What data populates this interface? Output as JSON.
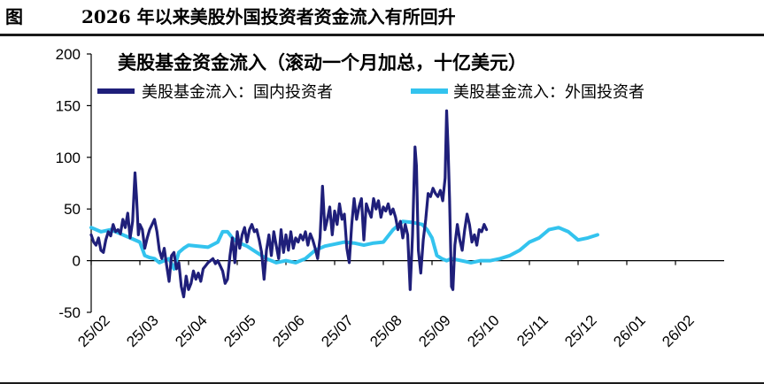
{
  "figure": {
    "label": "图",
    "title": "2026 年以来美股外国投资者资金流入有所回升"
  },
  "chart_data": {
    "type": "line",
    "title": "美股基金资金流入（滚动一个月加总，十亿美元）",
    "ylim": [
      -50,
      200
    ],
    "yticks": [
      "200",
      "150",
      "100",
      "50",
      "0",
      "-50"
    ],
    "xticks": [
      "25/02",
      "25/03",
      "25/04",
      "25/05",
      "25/06",
      "25/07",
      "25/08",
      "25/09",
      "25/10",
      "25/11",
      "25/12",
      "26/01",
      "26/02"
    ],
    "grid": false,
    "legend_position": "top-left",
    "series": [
      {
        "name": "美股基金流入：国内投资者",
        "color": "#1f1f7a",
        "values": [
          [
            0,
            25
          ],
          [
            0.05,
            18
          ],
          [
            0.1,
            15
          ],
          [
            0.15,
            22
          ],
          [
            0.2,
            10
          ],
          [
            0.25,
            8
          ],
          [
            0.3,
            20
          ],
          [
            0.35,
            28
          ],
          [
            0.4,
            24
          ],
          [
            0.45,
            35
          ],
          [
            0.5,
            28
          ],
          [
            0.55,
            30
          ],
          [
            0.6,
            26
          ],
          [
            0.65,
            40
          ],
          [
            0.7,
            32
          ],
          [
            0.75,
            46
          ],
          [
            0.8,
            22
          ],
          [
            0.85,
            38
          ],
          [
            0.9,
            85
          ],
          [
            0.93,
            62
          ],
          [
            0.97,
            25
          ],
          [
            1.0,
            35
          ],
          [
            1.05,
            30
          ],
          [
            1.1,
            12
          ],
          [
            1.15,
            22
          ],
          [
            1.2,
            30
          ],
          [
            1.25,
            35
          ],
          [
            1.3,
            40
          ],
          [
            1.35,
            28
          ],
          [
            1.4,
            10
          ],
          [
            1.45,
            2
          ],
          [
            1.5,
            12
          ],
          [
            1.55,
            -5
          ],
          [
            1.6,
            -20
          ],
          [
            1.65,
            5
          ],
          [
            1.7,
            8
          ],
          [
            1.75,
            -8
          ],
          [
            1.8,
            -2
          ],
          [
            1.85,
            -25
          ],
          [
            1.9,
            -35
          ],
          [
            1.95,
            -15
          ],
          [
            2.0,
            -28
          ],
          [
            2.05,
            -22
          ],
          [
            2.1,
            -10
          ],
          [
            2.15,
            -18
          ],
          [
            2.2,
            -12
          ],
          [
            2.25,
            -20
          ],
          [
            2.3,
            -8
          ],
          [
            2.35,
            -5
          ],
          [
            2.4,
            -2
          ],
          [
            2.45,
            0
          ],
          [
            2.5,
            2
          ],
          [
            2.55,
            -3
          ],
          [
            2.6,
            0
          ],
          [
            2.65,
            -5
          ],
          [
            2.7,
            -10
          ],
          [
            2.75,
            -22
          ],
          [
            2.8,
            -18
          ],
          [
            2.85,
            5
          ],
          [
            2.9,
            22
          ],
          [
            2.95,
            -2
          ],
          [
            3.0,
            28
          ],
          [
            3.05,
            12
          ],
          [
            3.1,
            25
          ],
          [
            3.15,
            32
          ],
          [
            3.2,
            18
          ],
          [
            3.25,
            30
          ],
          [
            3.3,
            35
          ],
          [
            3.35,
            28
          ],
          [
            3.4,
            30
          ],
          [
            3.45,
            20
          ],
          [
            3.5,
            8
          ],
          [
            3.55,
            -18
          ],
          [
            3.6,
            10
          ],
          [
            3.65,
            25
          ],
          [
            3.7,
            5
          ],
          [
            3.75,
            28
          ],
          [
            3.8,
            15
          ],
          [
            3.85,
            2
          ],
          [
            3.9,
            30
          ],
          [
            3.95,
            8
          ],
          [
            4.0,
            25
          ],
          [
            4.05,
            10
          ],
          [
            4.1,
            28
          ],
          [
            4.15,
            12
          ],
          [
            4.2,
            22
          ],
          [
            4.25,
            18
          ],
          [
            4.3,
            25
          ],
          [
            4.35,
            20
          ],
          [
            4.4,
            28
          ],
          [
            4.45,
            15
          ],
          [
            4.5,
            26
          ],
          [
            4.55,
            20
          ],
          [
            4.6,
            12
          ],
          [
            4.65,
            2
          ],
          [
            4.7,
            22
          ],
          [
            4.75,
            72
          ],
          [
            4.8,
            30
          ],
          [
            4.85,
            40
          ],
          [
            4.9,
            52
          ],
          [
            4.95,
            25
          ],
          [
            5.0,
            48
          ],
          [
            5.05,
            35
          ],
          [
            5.1,
            55
          ],
          [
            5.15,
            40
          ],
          [
            5.2,
            45
          ],
          [
            5.25,
            12
          ],
          [
            5.3,
            -2
          ],
          [
            5.35,
            35
          ],
          [
            5.4,
            60
          ],
          [
            5.45,
            40
          ],
          [
            5.5,
            52
          ],
          [
            5.55,
            60
          ],
          [
            5.6,
            20
          ],
          [
            5.65,
            55
          ],
          [
            5.7,
            48
          ],
          [
            5.75,
            42
          ],
          [
            5.8,
            60
          ],
          [
            5.85,
            50
          ],
          [
            5.9,
            58
          ],
          [
            5.95,
            42
          ],
          [
            6.0,
            52
          ],
          [
            6.05,
            48
          ],
          [
            6.1,
            55
          ],
          [
            6.15,
            45
          ],
          [
            6.2,
            50
          ],
          [
            6.25,
            42
          ],
          [
            6.3,
            30
          ],
          [
            6.35,
            38
          ],
          [
            6.4,
            22
          ],
          [
            6.45,
            35
          ],
          [
            6.5,
            25
          ],
          [
            6.55,
            -28
          ],
          [
            6.6,
            25
          ],
          [
            6.65,
            110
          ],
          [
            6.68,
            92
          ],
          [
            6.72,
            10
          ],
          [
            6.77,
            -12
          ],
          [
            6.82,
            20
          ],
          [
            6.87,
            40
          ],
          [
            6.92,
            65
          ],
          [
            6.97,
            62
          ],
          [
            7.02,
            70
          ],
          [
            7.07,
            65
          ],
          [
            7.12,
            62
          ],
          [
            7.17,
            68
          ],
          [
            7.22,
            58
          ],
          [
            7.27,
            80
          ],
          [
            7.3,
            145
          ],
          [
            7.33,
            110
          ],
          [
            7.36,
            60
          ],
          [
            7.4,
            -25
          ],
          [
            7.43,
            -28
          ],
          [
            7.47,
            15
          ],
          [
            7.52,
            35
          ],
          [
            7.57,
            20
          ],
          [
            7.62,
            10
          ],
          [
            7.67,
            30
          ],
          [
            7.72,
            45
          ],
          [
            7.77,
            35
          ],
          [
            7.82,
            18
          ],
          [
            7.87,
            25
          ],
          [
            7.92,
            15
          ],
          [
            7.97,
            30
          ],
          [
            8.02,
            28
          ],
          [
            8.07,
            35
          ],
          [
            8.12,
            30
          ]
        ]
      },
      {
        "name": "美股基金流入：外国投资者",
        "color": "#33c3ee",
        "values": [
          [
            0,
            32
          ],
          [
            0.2,
            28
          ],
          [
            0.4,
            30
          ],
          [
            0.6,
            26
          ],
          [
            0.8,
            22
          ],
          [
            1.0,
            18
          ],
          [
            1.1,
            5
          ],
          [
            1.2,
            3
          ],
          [
            1.3,
            2
          ],
          [
            1.4,
            -2
          ],
          [
            1.5,
            0
          ],
          [
            1.6,
            2
          ],
          [
            1.7,
            -8
          ],
          [
            1.8,
            8
          ],
          [
            1.9,
            12
          ],
          [
            2.0,
            15
          ],
          [
            2.2,
            14
          ],
          [
            2.4,
            13
          ],
          [
            2.6,
            18
          ],
          [
            2.7,
            28
          ],
          [
            2.8,
            28
          ],
          [
            2.9,
            22
          ],
          [
            3.0,
            18
          ],
          [
            3.2,
            14
          ],
          [
            3.4,
            8
          ],
          [
            3.6,
            2
          ],
          [
            3.8,
            -2
          ],
          [
            4.0,
            0
          ],
          [
            4.2,
            -2
          ],
          [
            4.4,
            2
          ],
          [
            4.6,
            10
          ],
          [
            4.8,
            14
          ],
          [
            5.0,
            16
          ],
          [
            5.2,
            18
          ],
          [
            5.4,
            17
          ],
          [
            5.6,
            15
          ],
          [
            5.8,
            17
          ],
          [
            6.0,
            18
          ],
          [
            6.2,
            30
          ],
          [
            6.4,
            38
          ],
          [
            6.6,
            37
          ],
          [
            6.8,
            35
          ],
          [
            6.9,
            30
          ],
          [
            7.0,
            22
          ],
          [
            7.1,
            5
          ],
          [
            7.2,
            2
          ],
          [
            7.3,
            0
          ],
          [
            7.4,
            2
          ],
          [
            7.6,
            0
          ],
          [
            7.8,
            -2
          ],
          [
            8.0,
            0
          ],
          [
            8.2,
            0
          ],
          [
            8.4,
            2
          ],
          [
            8.6,
            5
          ],
          [
            8.8,
            10
          ],
          [
            9.0,
            18
          ],
          [
            9.2,
            22
          ],
          [
            9.4,
            30
          ],
          [
            9.6,
            32
          ],
          [
            9.8,
            28
          ],
          [
            10.0,
            20
          ],
          [
            10.2,
            22
          ],
          [
            10.4,
            25
          ]
        ]
      }
    ]
  }
}
